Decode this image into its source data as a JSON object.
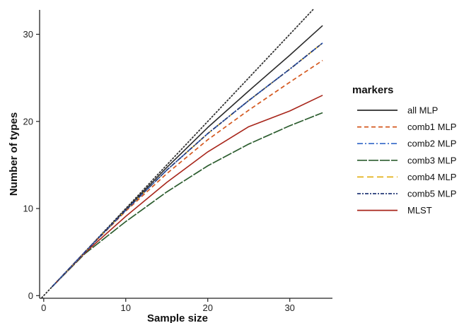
{
  "chart_data": {
    "type": "line",
    "xlabel": "Sample size",
    "ylabel": "Number of types",
    "xlim": [
      -0.5,
      35.2
    ],
    "ylim": [
      -0.3,
      32.8
    ],
    "xticks": [
      0,
      10,
      20,
      30
    ],
    "yticks": [
      0,
      10,
      20,
      30
    ],
    "grid": false,
    "legend": {
      "title": "markers",
      "position": "right"
    },
    "reference_line": {
      "style": "dotted",
      "color": "#333333",
      "x": [
        -0.5,
        33
      ],
      "y": [
        -0.5,
        33
      ]
    },
    "series": [
      {
        "name": "all MLP",
        "color": "#2b2b2b",
        "dash": "solid",
        "x": [
          1,
          5,
          10,
          15,
          20,
          25,
          30,
          34
        ],
        "y": [
          1,
          5,
          9.9,
          14.7,
          19.3,
          23.5,
          27.6,
          31
        ]
      },
      {
        "name": "comb1 MLP",
        "color": "#d4581f",
        "dash": "dashed",
        "x": [
          1,
          5,
          10,
          15,
          20,
          25,
          30,
          34
        ],
        "y": [
          1,
          5,
          9.7,
          14,
          17.9,
          21.3,
          24.5,
          27
        ]
      },
      {
        "name": "comb2 MLP",
        "color": "#3367c8",
        "dash": "dashdot",
        "x": [
          1,
          5,
          10,
          15,
          20,
          25,
          30,
          34
        ],
        "y": [
          1,
          5,
          9.8,
          14.4,
          18.6,
          22.4,
          26,
          29
        ]
      },
      {
        "name": "comb3 MLP",
        "color": "#2c5d2f",
        "dash": "longdash",
        "x": [
          1,
          5,
          10,
          15,
          20,
          25,
          30,
          34
        ],
        "y": [
          1,
          4.8,
          8.5,
          11.9,
          14.9,
          17.4,
          19.5,
          21
        ]
      },
      {
        "name": "comb4 MLP",
        "color": "#e4b21c",
        "dash": "longdash2",
        "x": [
          1,
          5,
          10,
          15,
          20,
          25,
          30,
          34
        ],
        "y": [
          1,
          5,
          9.8,
          14.4,
          18.6,
          22.4,
          26,
          29
        ]
      },
      {
        "name": "comb5 MLP",
        "color": "#263a78",
        "dash": "twodash",
        "x": [
          1,
          5,
          10,
          15,
          20,
          25,
          30,
          34
        ],
        "y": [
          1,
          5,
          9.8,
          14.4,
          18.6,
          22.4,
          26,
          29
        ]
      },
      {
        "name": "MLST",
        "color": "#a8261b",
        "dash": "solid",
        "x": [
          1,
          5,
          10,
          15,
          20,
          25,
          30,
          34
        ],
        "y": [
          1,
          4.9,
          9.1,
          13,
          16.5,
          19.4,
          21.2,
          23
        ]
      }
    ]
  }
}
